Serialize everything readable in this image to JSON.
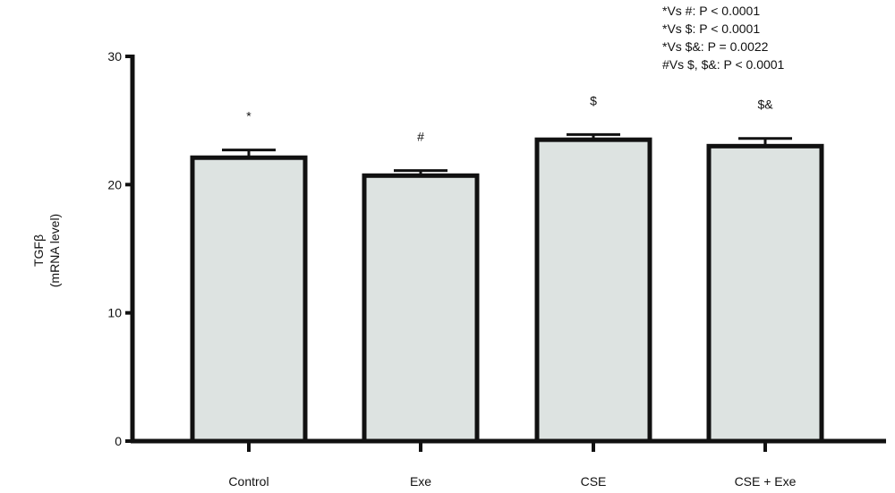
{
  "chart_data": {
    "type": "bar",
    "categories": [
      "Control",
      "Exe",
      "CSE",
      "CSE + Exe"
    ],
    "values": [
      22.1,
      20.7,
      23.5,
      23.0
    ],
    "errors": [
      0.6,
      0.4,
      0.4,
      0.6
    ],
    "significance_labels": [
      "*",
      "#",
      "$",
      "$&"
    ],
    "ylabel_line1": "TGFβ",
    "ylabel_line2": "(mRNA level)",
    "ylim": [
      0,
      30
    ],
    "yticks": [
      0,
      10,
      20,
      30
    ],
    "grid": false,
    "bar_fill": "#dde3e1",
    "bar_stroke": "#111111",
    "annotation_lines": [
      "*Vs #: P < 0.0001",
      "*Vs $: P < 0.0001",
      "*Vs $&: P = 0.0022",
      "#Vs $, $&: P < 0.0001"
    ]
  }
}
